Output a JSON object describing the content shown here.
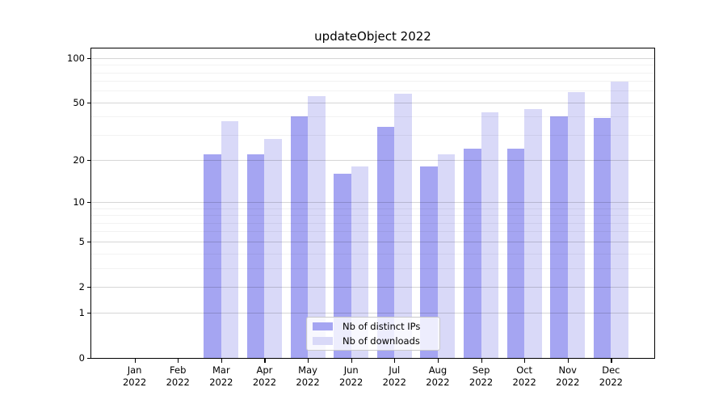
{
  "title": "updateObject 2022",
  "legend": {
    "items": [
      {
        "label": "Nb of distinct IPs",
        "color": "#a5a5f2"
      },
      {
        "label": "Nb of downloads",
        "color": "#d9d9f8"
      }
    ]
  },
  "colors": {
    "spine": "#000000",
    "major_grid": "rgba(0,0,0,0.16)",
    "minor_grid": "rgba(0,0,0,0.05)",
    "background": "#ffffff"
  },
  "y_axis": {
    "scale": "log1p",
    "tick_labels": [
      "0",
      "1",
      "2",
      "5",
      "10",
      "20",
      "50",
      "100"
    ],
    "major_ticks": [
      0,
      1,
      2,
      5,
      10,
      20,
      50,
      100
    ],
    "minor_ticks": [
      3,
      4,
      6,
      7,
      8,
      9,
      30,
      40,
      60,
      70,
      80,
      90
    ],
    "top_value": 116
  },
  "x_axis": {
    "months": [
      "Jan",
      "Feb",
      "Mar",
      "Apr",
      "May",
      "Jun",
      "Jul",
      "Aug",
      "Sep",
      "Oct",
      "Nov",
      "Dec"
    ],
    "year": "2022"
  },
  "chart_data": {
    "type": "bar",
    "title": "updateObject 2022",
    "categories": [
      "Jan 2022",
      "Feb 2022",
      "Mar 2022",
      "Apr 2022",
      "May 2022",
      "Jun 2022",
      "Jul 2022",
      "Aug 2022",
      "Sep 2022",
      "Oct 2022",
      "Nov 2022",
      "Dec 2022"
    ],
    "series": [
      {
        "name": "Nb of distinct IPs",
        "values": [
          0,
          0,
          22,
          22,
          40,
          16,
          34,
          18,
          24,
          24,
          40,
          39
        ]
      },
      {
        "name": "Nb of downloads",
        "values": [
          0,
          0,
          37,
          28,
          55,
          18,
          57,
          22,
          43,
          45,
          59,
          69
        ]
      }
    ],
    "xlabel": "",
    "ylabel": "",
    "yscale": "log1p",
    "yticks": [
      0,
      1,
      2,
      5,
      10,
      20,
      50,
      100
    ],
    "ylim": [
      0,
      116
    ],
    "grid": true,
    "legend_position": "lower center"
  }
}
